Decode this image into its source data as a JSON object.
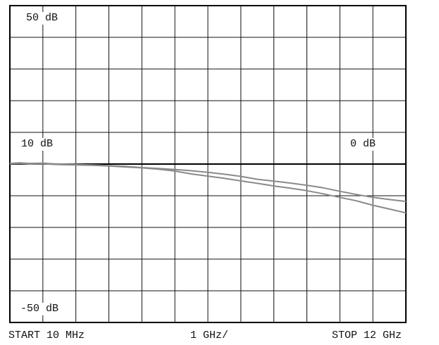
{
  "chart_data": {
    "type": "line",
    "ref_labels": {
      "top_left": "50 dB",
      "mid_left": "10 dB",
      "mid_right": "0 dB",
      "bottom_left": "-50 dB"
    },
    "footer": {
      "start": "START 10 MHz",
      "scale": "1 GHz/",
      "stop": "STOP 12 GHz"
    },
    "x_unit": "GHz",
    "xlim": [
      0.01,
      12
    ],
    "y_unit": "dB",
    "ylim": [
      -50,
      50
    ],
    "y_divisions": 10,
    "x_divisions": 12,
    "grid": true,
    "reference_level_db": 10,
    "trace_color": "#8a8a8a",
    "series": [
      {
        "points": [
          [
            0.01,
            10.2
          ],
          [
            0.3,
            10.4
          ],
          [
            0.6,
            10.2
          ],
          [
            1.0,
            10.3
          ],
          [
            1.3,
            10.1
          ],
          [
            1.6,
            10.0
          ],
          [
            2.0,
            9.9
          ],
          [
            2.5,
            9.7
          ],
          [
            3.0,
            9.5
          ],
          [
            3.5,
            9.3
          ],
          [
            4.0,
            8.9
          ],
          [
            4.5,
            8.6
          ],
          [
            5.0,
            8.3
          ],
          [
            5.5,
            7.9
          ],
          [
            6.0,
            7.4
          ],
          [
            6.5,
            6.8
          ],
          [
            7.0,
            6.1
          ],
          [
            7.5,
            5.2
          ],
          [
            8.0,
            4.6
          ],
          [
            8.5,
            4.0
          ],
          [
            9.0,
            3.3
          ],
          [
            9.5,
            2.5
          ],
          [
            10.0,
            1.4
          ],
          [
            10.5,
            0.4
          ],
          [
            11.0,
            -0.5
          ],
          [
            11.5,
            -1.2
          ],
          [
            12.0,
            -1.8
          ]
        ]
      },
      {
        "points": [
          [
            0.01,
            10.1
          ],
          [
            0.3,
            10.2
          ],
          [
            0.6,
            10.0
          ],
          [
            1.0,
            10.1
          ],
          [
            1.3,
            9.9
          ],
          [
            1.6,
            9.8
          ],
          [
            2.0,
            9.7
          ],
          [
            2.5,
            9.6
          ],
          [
            3.0,
            9.4
          ],
          [
            3.5,
            9.1
          ],
          [
            4.0,
            8.8
          ],
          [
            4.5,
            8.4
          ],
          [
            5.0,
            7.8
          ],
          [
            5.5,
            6.9
          ],
          [
            6.0,
            6.2
          ],
          [
            6.5,
            5.5
          ],
          [
            7.0,
            4.7
          ],
          [
            7.5,
            3.9
          ],
          [
            8.0,
            3.1
          ],
          [
            8.5,
            2.4
          ],
          [
            9.0,
            1.6
          ],
          [
            9.5,
            0.6
          ],
          [
            10.0,
            -0.5
          ],
          [
            10.5,
            -1.6
          ],
          [
            11.0,
            -3.0
          ],
          [
            11.5,
            -4.2
          ],
          [
            12.0,
            -5.4
          ]
        ]
      }
    ]
  }
}
